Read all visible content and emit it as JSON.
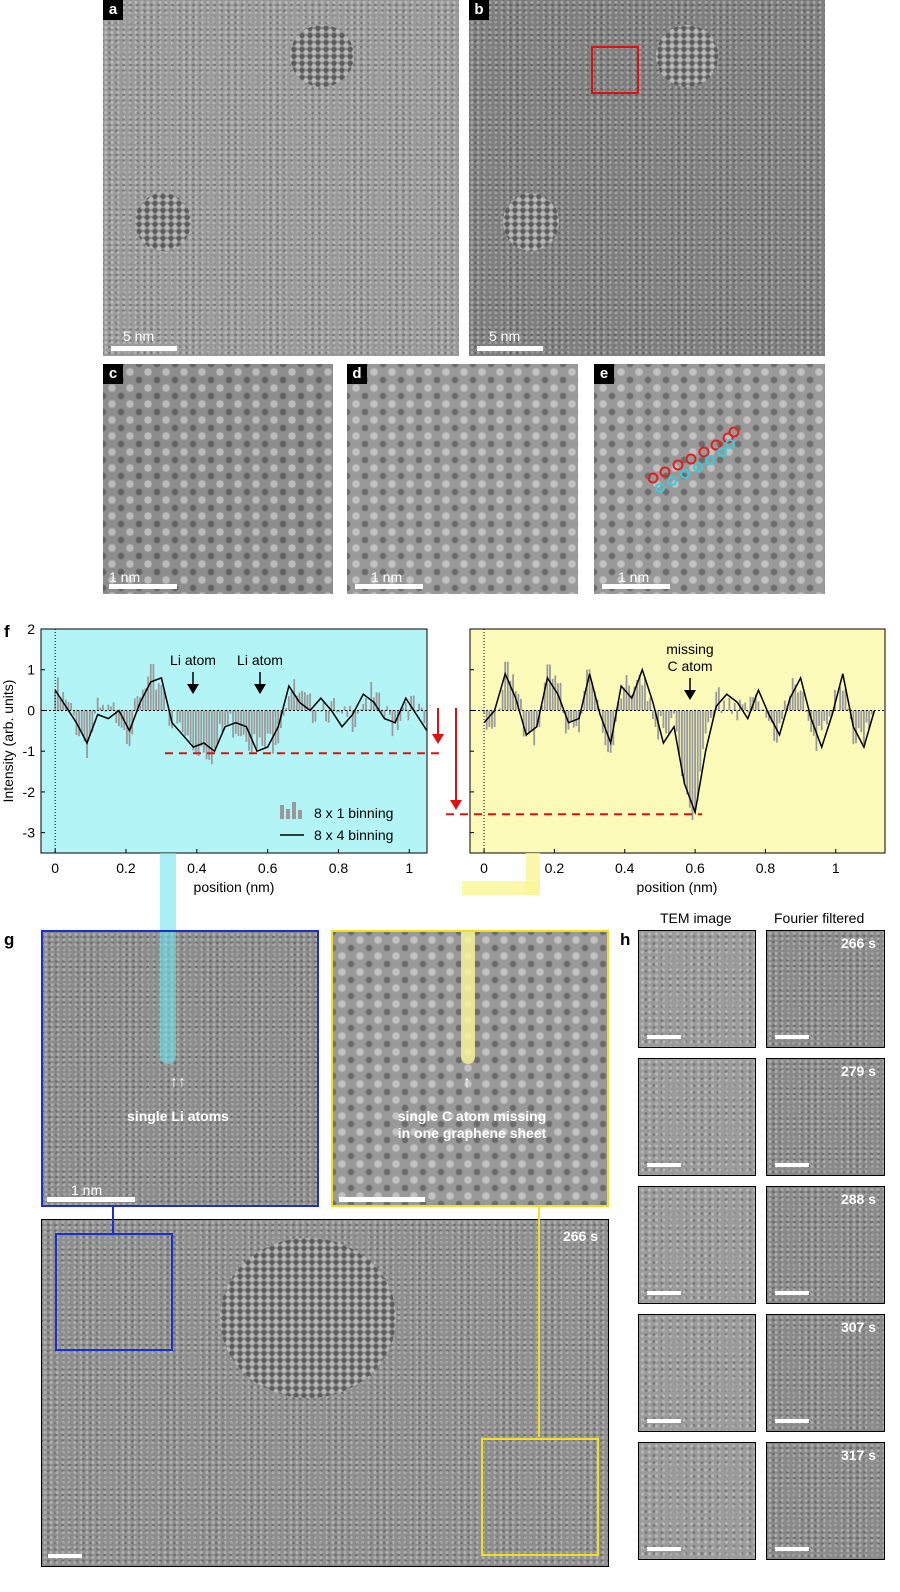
{
  "panels": {
    "a": {
      "label": "a",
      "scalebar": "5 nm"
    },
    "b": {
      "label": "b",
      "scalebar": "5 nm"
    },
    "c": {
      "label": "c",
      "scalebar": "1 nm"
    },
    "d": {
      "label": "d",
      "scalebar": "1 nm"
    },
    "e": {
      "label": "e",
      "scalebar": "1 nm"
    },
    "f": {
      "label": "f"
    },
    "g": {
      "label": "g",
      "scalebar": "1 nm",
      "time": "266 s",
      "left_annotation": "single Li atoms",
      "right_annotation_line1": "single C atom missing",
      "right_annotation_line2": "in one graphene sheet"
    },
    "h": {
      "label": "h",
      "col1_header": "TEM image",
      "col2_header": "Fourier filtered",
      "times": [
        "266 s",
        "279 s",
        "288 s",
        "307 s",
        "317 s"
      ]
    }
  },
  "chart_data": [
    {
      "type": "line",
      "panel": "f-left",
      "background": "#b3f5f7",
      "ylabel": "Intensity (arb. units)",
      "xlabel": "position (nm)",
      "xlim": [
        -0.04,
        1.05
      ],
      "ylim": [
        -3.5,
        2
      ],
      "xticks": [
        "0",
        "0.2",
        "0.4",
        "0.6",
        "0.8",
        "1"
      ],
      "yticks": [
        "2",
        "1",
        "0",
        "-1",
        "-2",
        "-3"
      ],
      "annotations": [
        {
          "text": "Li atom",
          "x": 0.39
        },
        {
          "text": "Li atom",
          "x": 0.58
        }
      ],
      "reference_line_y": -1.05,
      "legend": [
        {
          "name": "8 x 1 binning",
          "style": "gray bars"
        },
        {
          "name": "8 x 4 binning",
          "style": "black line"
        }
      ],
      "series": [
        {
          "name": "8 x 4 binning",
          "x": [
            0,
            0.03,
            0.06,
            0.09,
            0.12,
            0.15,
            0.18,
            0.21,
            0.24,
            0.27,
            0.3,
            0.33,
            0.36,
            0.39,
            0.42,
            0.45,
            0.48,
            0.51,
            0.54,
            0.57,
            0.6,
            0.63,
            0.66,
            0.69,
            0.72,
            0.75,
            0.78,
            0.81,
            0.84,
            0.87,
            0.9,
            0.93,
            0.96,
            0.99,
            1.02,
            1.05
          ],
          "values": [
            0.5,
            0.1,
            -0.3,
            -0.8,
            -0.1,
            -0.2,
            0.0,
            -0.5,
            0.2,
            0.7,
            0.8,
            -0.3,
            -0.6,
            -0.9,
            -0.8,
            -1.0,
            -0.4,
            -0.3,
            -0.4,
            -1.0,
            -0.9,
            -0.4,
            0.6,
            0.2,
            0.0,
            0.3,
            0.0,
            -0.4,
            -0.1,
            0.4,
            0.2,
            -0.2,
            -0.3,
            0.3,
            -0.1,
            -0.5
          ]
        }
      ]
    },
    {
      "type": "line",
      "panel": "f-right",
      "background": "#fbfab9",
      "xlabel": "position (nm)",
      "xlim": [
        -0.04,
        1.14
      ],
      "ylim": [
        -3.5,
        2
      ],
      "xticks": [
        "0",
        "0.2",
        "0.4",
        "0.6",
        "0.8",
        "1"
      ],
      "annotations": [
        {
          "text": "missing C atom",
          "x": 0.59
        }
      ],
      "reference_line_y": -2.55,
      "series": [
        {
          "name": "8 x 4 binning",
          "x": [
            0,
            0.03,
            0.06,
            0.09,
            0.12,
            0.15,
            0.18,
            0.21,
            0.24,
            0.27,
            0.3,
            0.33,
            0.36,
            0.39,
            0.42,
            0.45,
            0.48,
            0.51,
            0.54,
            0.57,
            0.6,
            0.63,
            0.66,
            0.69,
            0.72,
            0.75,
            0.78,
            0.81,
            0.84,
            0.87,
            0.9,
            0.93,
            0.96,
            0.99,
            1.02,
            1.05,
            1.08,
            1.11
          ],
          "values": [
            -0.3,
            0.0,
            0.9,
            0.3,
            -0.6,
            -0.4,
            0.8,
            0.4,
            -0.3,
            -0.2,
            0.9,
            -0.1,
            -0.8,
            0.6,
            0.3,
            1.0,
            0.2,
            -0.8,
            -0.4,
            -1.8,
            -2.5,
            -1.0,
            0.1,
            0.4,
            0.2,
            -0.2,
            0.5,
            -0.1,
            -0.6,
            0.3,
            0.8,
            -0.2,
            -0.9,
            -0.1,
            0.9,
            -0.4,
            -0.9,
            0.0
          ]
        }
      ]
    }
  ]
}
